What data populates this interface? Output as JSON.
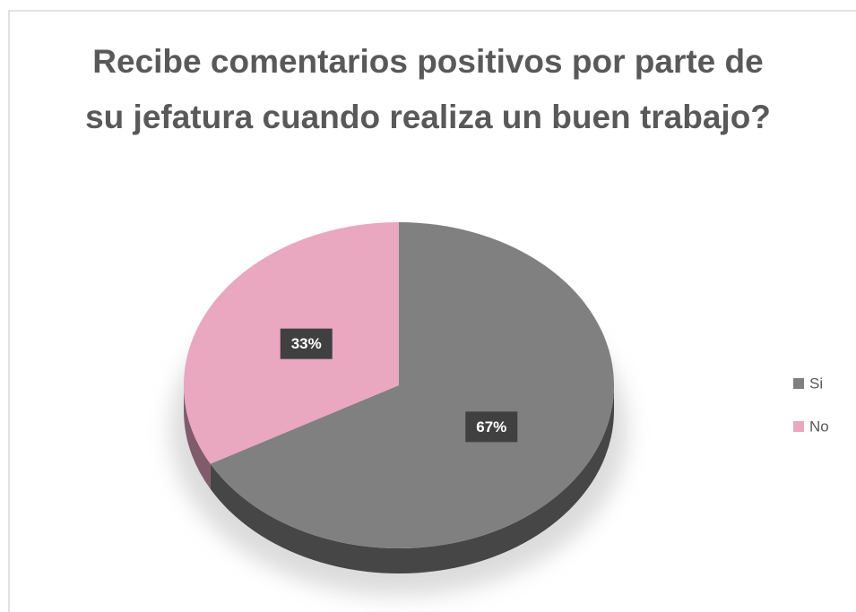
{
  "chart_data": {
    "type": "pie",
    "title": "Recibe comentarios positivos por parte de su jefatura cuando realiza un buen trabajo?",
    "categories": [
      "Si",
      "No"
    ],
    "values": [
      67,
      33
    ],
    "value_labels": [
      "67%",
      "33%"
    ],
    "colors": [
      "#808080",
      "#e9a7c0"
    ],
    "legend": "right"
  }
}
